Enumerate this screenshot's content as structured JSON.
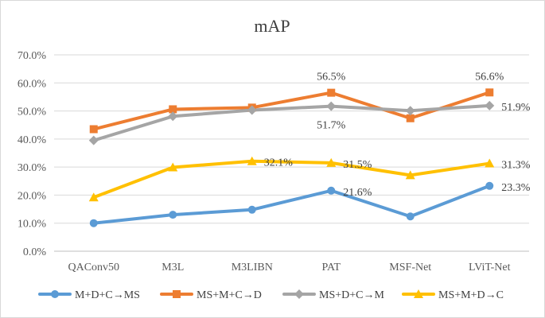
{
  "chart_data": {
    "type": "line",
    "title": "mAP",
    "xlabel": "",
    "ylabel": "",
    "ylim": [
      0,
      70
    ],
    "yticks": [
      "0.0%",
      "10.0%",
      "20.0%",
      "30.0%",
      "40.0%",
      "50.0%",
      "60.0%",
      "70.0%"
    ],
    "categories": [
      "QAConv50",
      "M3L",
      "M3LIBN",
      "PAT",
      "MSF-Net",
      "LViT-Net"
    ],
    "grid": true,
    "legend_position": "bottom",
    "series": [
      {
        "name": "M+D+C→MS",
        "color": "#5b9bd5",
        "marker": "circle",
        "values": [
          10.0,
          13.0,
          14.8,
          21.6,
          12.4,
          23.3
        ]
      },
      {
        "name": "MS+M+C→D",
        "color": "#ed7d31",
        "marker": "square",
        "values": [
          43.5,
          50.6,
          51.2,
          56.5,
          47.4,
          56.6
        ]
      },
      {
        "name": "MS+D+C→M",
        "color": "#a5a5a5",
        "marker": "diamond",
        "values": [
          39.5,
          48.1,
          50.3,
          51.7,
          50.1,
          51.9
        ]
      },
      {
        "name": "MS+M+D→C",
        "color": "#ffc000",
        "marker": "triangle",
        "values": [
          19.2,
          29.9,
          32.1,
          31.5,
          27.1,
          31.3
        ]
      }
    ],
    "data_labels": [
      {
        "series": 0,
        "index": 3,
        "text": "21.6%"
      },
      {
        "series": 0,
        "index": 5,
        "text": "23.3%"
      },
      {
        "series": 1,
        "index": 3,
        "text": "56.5%"
      },
      {
        "series": 1,
        "index": 5,
        "text": "56.6%"
      },
      {
        "series": 2,
        "index": 3,
        "text": "51.7%"
      },
      {
        "series": 2,
        "index": 5,
        "text": "51.9%"
      },
      {
        "series": 3,
        "index": 2,
        "text": "32.1%"
      },
      {
        "series": 3,
        "index": 3,
        "text": "31.5%"
      },
      {
        "series": 3,
        "index": 5,
        "text": "31.3%"
      }
    ]
  }
}
